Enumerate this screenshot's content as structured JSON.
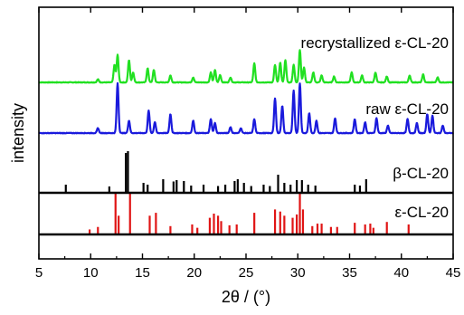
{
  "chart_data": {
    "type": "line",
    "xlabel": "2θ / (°)",
    "ylabel": "intensity",
    "xlim": [
      5,
      45
    ],
    "xticks": [
      5,
      10,
      15,
      20,
      25,
      30,
      35,
      40,
      45
    ],
    "grid": false,
    "legend": "none",
    "series": [
      {
        "name": "recrystallized ε-CL-20",
        "kind": "pattern",
        "color": "#21e021",
        "peaks": [
          {
            "x": 10.7,
            "h": 0.06
          },
          {
            "x": 12.3,
            "h": 0.35
          },
          {
            "x": 12.6,
            "h": 0.55
          },
          {
            "x": 13.7,
            "h": 0.45
          },
          {
            "x": 14.1,
            "h": 0.2
          },
          {
            "x": 15.5,
            "h": 0.28
          },
          {
            "x": 16.1,
            "h": 0.25
          },
          {
            "x": 17.7,
            "h": 0.14
          },
          {
            "x": 19.9,
            "h": 0.1
          },
          {
            "x": 21.6,
            "h": 0.2
          },
          {
            "x": 22.0,
            "h": 0.25
          },
          {
            "x": 22.5,
            "h": 0.15
          },
          {
            "x": 23.5,
            "h": 0.1
          },
          {
            "x": 25.8,
            "h": 0.38
          },
          {
            "x": 27.8,
            "h": 0.35
          },
          {
            "x": 28.3,
            "h": 0.4
          },
          {
            "x": 28.8,
            "h": 0.45
          },
          {
            "x": 29.6,
            "h": 0.35
          },
          {
            "x": 30.2,
            "h": 0.65
          },
          {
            "x": 30.6,
            "h": 0.3
          },
          {
            "x": 31.5,
            "h": 0.2
          },
          {
            "x": 32.3,
            "h": 0.14
          },
          {
            "x": 33.5,
            "h": 0.12
          },
          {
            "x": 35.2,
            "h": 0.2
          },
          {
            "x": 36.2,
            "h": 0.14
          },
          {
            "x": 37.5,
            "h": 0.2
          },
          {
            "x": 38.6,
            "h": 0.12
          },
          {
            "x": 40.8,
            "h": 0.14
          },
          {
            "x": 42.1,
            "h": 0.16
          },
          {
            "x": 43.5,
            "h": 0.1
          }
        ]
      },
      {
        "name": "raw ε-CL-20",
        "kind": "pattern",
        "color": "#1a1adc",
        "peaks": [
          {
            "x": 10.7,
            "h": 0.1
          },
          {
            "x": 12.6,
            "h": 1.0
          },
          {
            "x": 13.7,
            "h": 0.25
          },
          {
            "x": 15.6,
            "h": 0.45
          },
          {
            "x": 16.2,
            "h": 0.22
          },
          {
            "x": 17.7,
            "h": 0.38
          },
          {
            "x": 19.9,
            "h": 0.25
          },
          {
            "x": 21.6,
            "h": 0.28
          },
          {
            "x": 22.0,
            "h": 0.2
          },
          {
            "x": 23.5,
            "h": 0.12
          },
          {
            "x": 24.5,
            "h": 0.1
          },
          {
            "x": 25.8,
            "h": 0.28
          },
          {
            "x": 27.8,
            "h": 0.7
          },
          {
            "x": 28.5,
            "h": 0.55
          },
          {
            "x": 29.6,
            "h": 0.85
          },
          {
            "x": 30.2,
            "h": 1.0
          },
          {
            "x": 31.1,
            "h": 0.4
          },
          {
            "x": 31.8,
            "h": 0.25
          },
          {
            "x": 33.6,
            "h": 0.3
          },
          {
            "x": 35.5,
            "h": 0.28
          },
          {
            "x": 36.5,
            "h": 0.22
          },
          {
            "x": 37.6,
            "h": 0.3
          },
          {
            "x": 38.7,
            "h": 0.15
          },
          {
            "x": 40.6,
            "h": 0.28
          },
          {
            "x": 41.5,
            "h": 0.2
          },
          {
            "x": 42.5,
            "h": 0.38
          },
          {
            "x": 43.0,
            "h": 0.35
          },
          {
            "x": 44.0,
            "h": 0.15
          }
        ]
      },
      {
        "name": "β-CL-20",
        "kind": "sticks",
        "color": "#000000",
        "sticks": [
          {
            "x": 7.6,
            "h": 0.18
          },
          {
            "x": 11.8,
            "h": 0.14
          },
          {
            "x": 13.4,
            "h": 0.88
          },
          {
            "x": 13.6,
            "h": 0.92
          },
          {
            "x": 15.1,
            "h": 0.22
          },
          {
            "x": 15.5,
            "h": 0.18
          },
          {
            "x": 17.0,
            "h": 0.3
          },
          {
            "x": 18.0,
            "h": 0.25
          },
          {
            "x": 18.3,
            "h": 0.28
          },
          {
            "x": 19.0,
            "h": 0.26
          },
          {
            "x": 19.7,
            "h": 0.16
          },
          {
            "x": 20.9,
            "h": 0.18
          },
          {
            "x": 22.3,
            "h": 0.15
          },
          {
            "x": 23.0,
            "h": 0.18
          },
          {
            "x": 23.9,
            "h": 0.26
          },
          {
            "x": 24.2,
            "h": 0.3
          },
          {
            "x": 24.8,
            "h": 0.22
          },
          {
            "x": 25.5,
            "h": 0.15
          },
          {
            "x": 26.7,
            "h": 0.18
          },
          {
            "x": 27.3,
            "h": 0.15
          },
          {
            "x": 28.1,
            "h": 0.4
          },
          {
            "x": 28.7,
            "h": 0.22
          },
          {
            "x": 29.3,
            "h": 0.18
          },
          {
            "x": 29.9,
            "h": 0.28
          },
          {
            "x": 30.4,
            "h": 0.28
          },
          {
            "x": 31.0,
            "h": 0.18
          },
          {
            "x": 31.7,
            "h": 0.16
          },
          {
            "x": 35.5,
            "h": 0.18
          },
          {
            "x": 36.0,
            "h": 0.16
          },
          {
            "x": 36.6,
            "h": 0.3
          }
        ]
      },
      {
        "name": "ε-CL-20",
        "kind": "sticks",
        "color": "#e01515",
        "sticks": [
          {
            "x": 9.9,
            "h": 0.12
          },
          {
            "x": 10.7,
            "h": 0.18
          },
          {
            "x": 12.4,
            "h": 1.0
          },
          {
            "x": 12.7,
            "h": 0.45
          },
          {
            "x": 13.8,
            "h": 1.0
          },
          {
            "x": 15.7,
            "h": 0.45
          },
          {
            "x": 16.3,
            "h": 0.52
          },
          {
            "x": 17.7,
            "h": 0.2
          },
          {
            "x": 19.8,
            "h": 0.24
          },
          {
            "x": 20.3,
            "h": 0.16
          },
          {
            "x": 21.5,
            "h": 0.4
          },
          {
            "x": 21.9,
            "h": 0.5
          },
          {
            "x": 22.3,
            "h": 0.45
          },
          {
            "x": 22.6,
            "h": 0.32
          },
          {
            "x": 23.4,
            "h": 0.22
          },
          {
            "x": 24.1,
            "h": 0.24
          },
          {
            "x": 25.8,
            "h": 0.52
          },
          {
            "x": 27.8,
            "h": 0.6
          },
          {
            "x": 28.3,
            "h": 0.55
          },
          {
            "x": 28.7,
            "h": 0.45
          },
          {
            "x": 29.5,
            "h": 0.4
          },
          {
            "x": 29.9,
            "h": 0.48
          },
          {
            "x": 30.2,
            "h": 1.0
          },
          {
            "x": 30.5,
            "h": 0.6
          },
          {
            "x": 31.4,
            "h": 0.2
          },
          {
            "x": 31.9,
            "h": 0.26
          },
          {
            "x": 32.3,
            "h": 0.26
          },
          {
            "x": 33.2,
            "h": 0.18
          },
          {
            "x": 33.8,
            "h": 0.18
          },
          {
            "x": 35.5,
            "h": 0.28
          },
          {
            "x": 36.5,
            "h": 0.24
          },
          {
            "x": 37.0,
            "h": 0.26
          },
          {
            "x": 37.3,
            "h": 0.16
          },
          {
            "x": 38.6,
            "h": 0.3
          },
          {
            "x": 40.7,
            "h": 0.24
          }
        ]
      }
    ]
  }
}
